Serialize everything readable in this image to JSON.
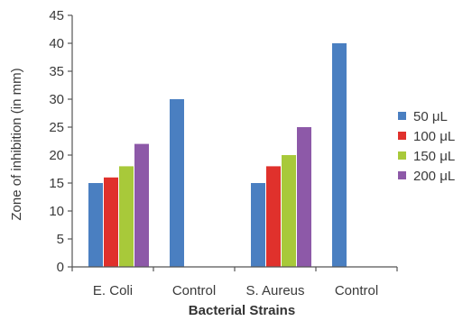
{
  "chart_data": {
    "type": "bar",
    "title": "",
    "xlabel": "Bacterial Strains",
    "ylabel": "Zone of inhibition (in mm)",
    "ylim": [
      0,
      45
    ],
    "yticks": [
      0,
      5,
      10,
      15,
      20,
      25,
      30,
      35,
      40,
      45
    ],
    "grid": false,
    "legend_position": "right",
    "categories": [
      "E. Coli",
      "Control",
      "S. Aureus",
      "Control"
    ],
    "series": [
      {
        "name": "50 μL",
        "color": "#4a7fc1",
        "values": [
          15,
          30,
          15,
          40
        ]
      },
      {
        "name": "100 μL",
        "color": "#e0312c",
        "values": [
          16,
          null,
          18,
          null
        ]
      },
      {
        "name": "150 μL",
        "color": "#a8c93a",
        "values": [
          18,
          null,
          20,
          null
        ]
      },
      {
        "name": "200 μL",
        "color": "#8d59a8",
        "values": [
          22,
          null,
          25,
          null
        ]
      }
    ]
  }
}
